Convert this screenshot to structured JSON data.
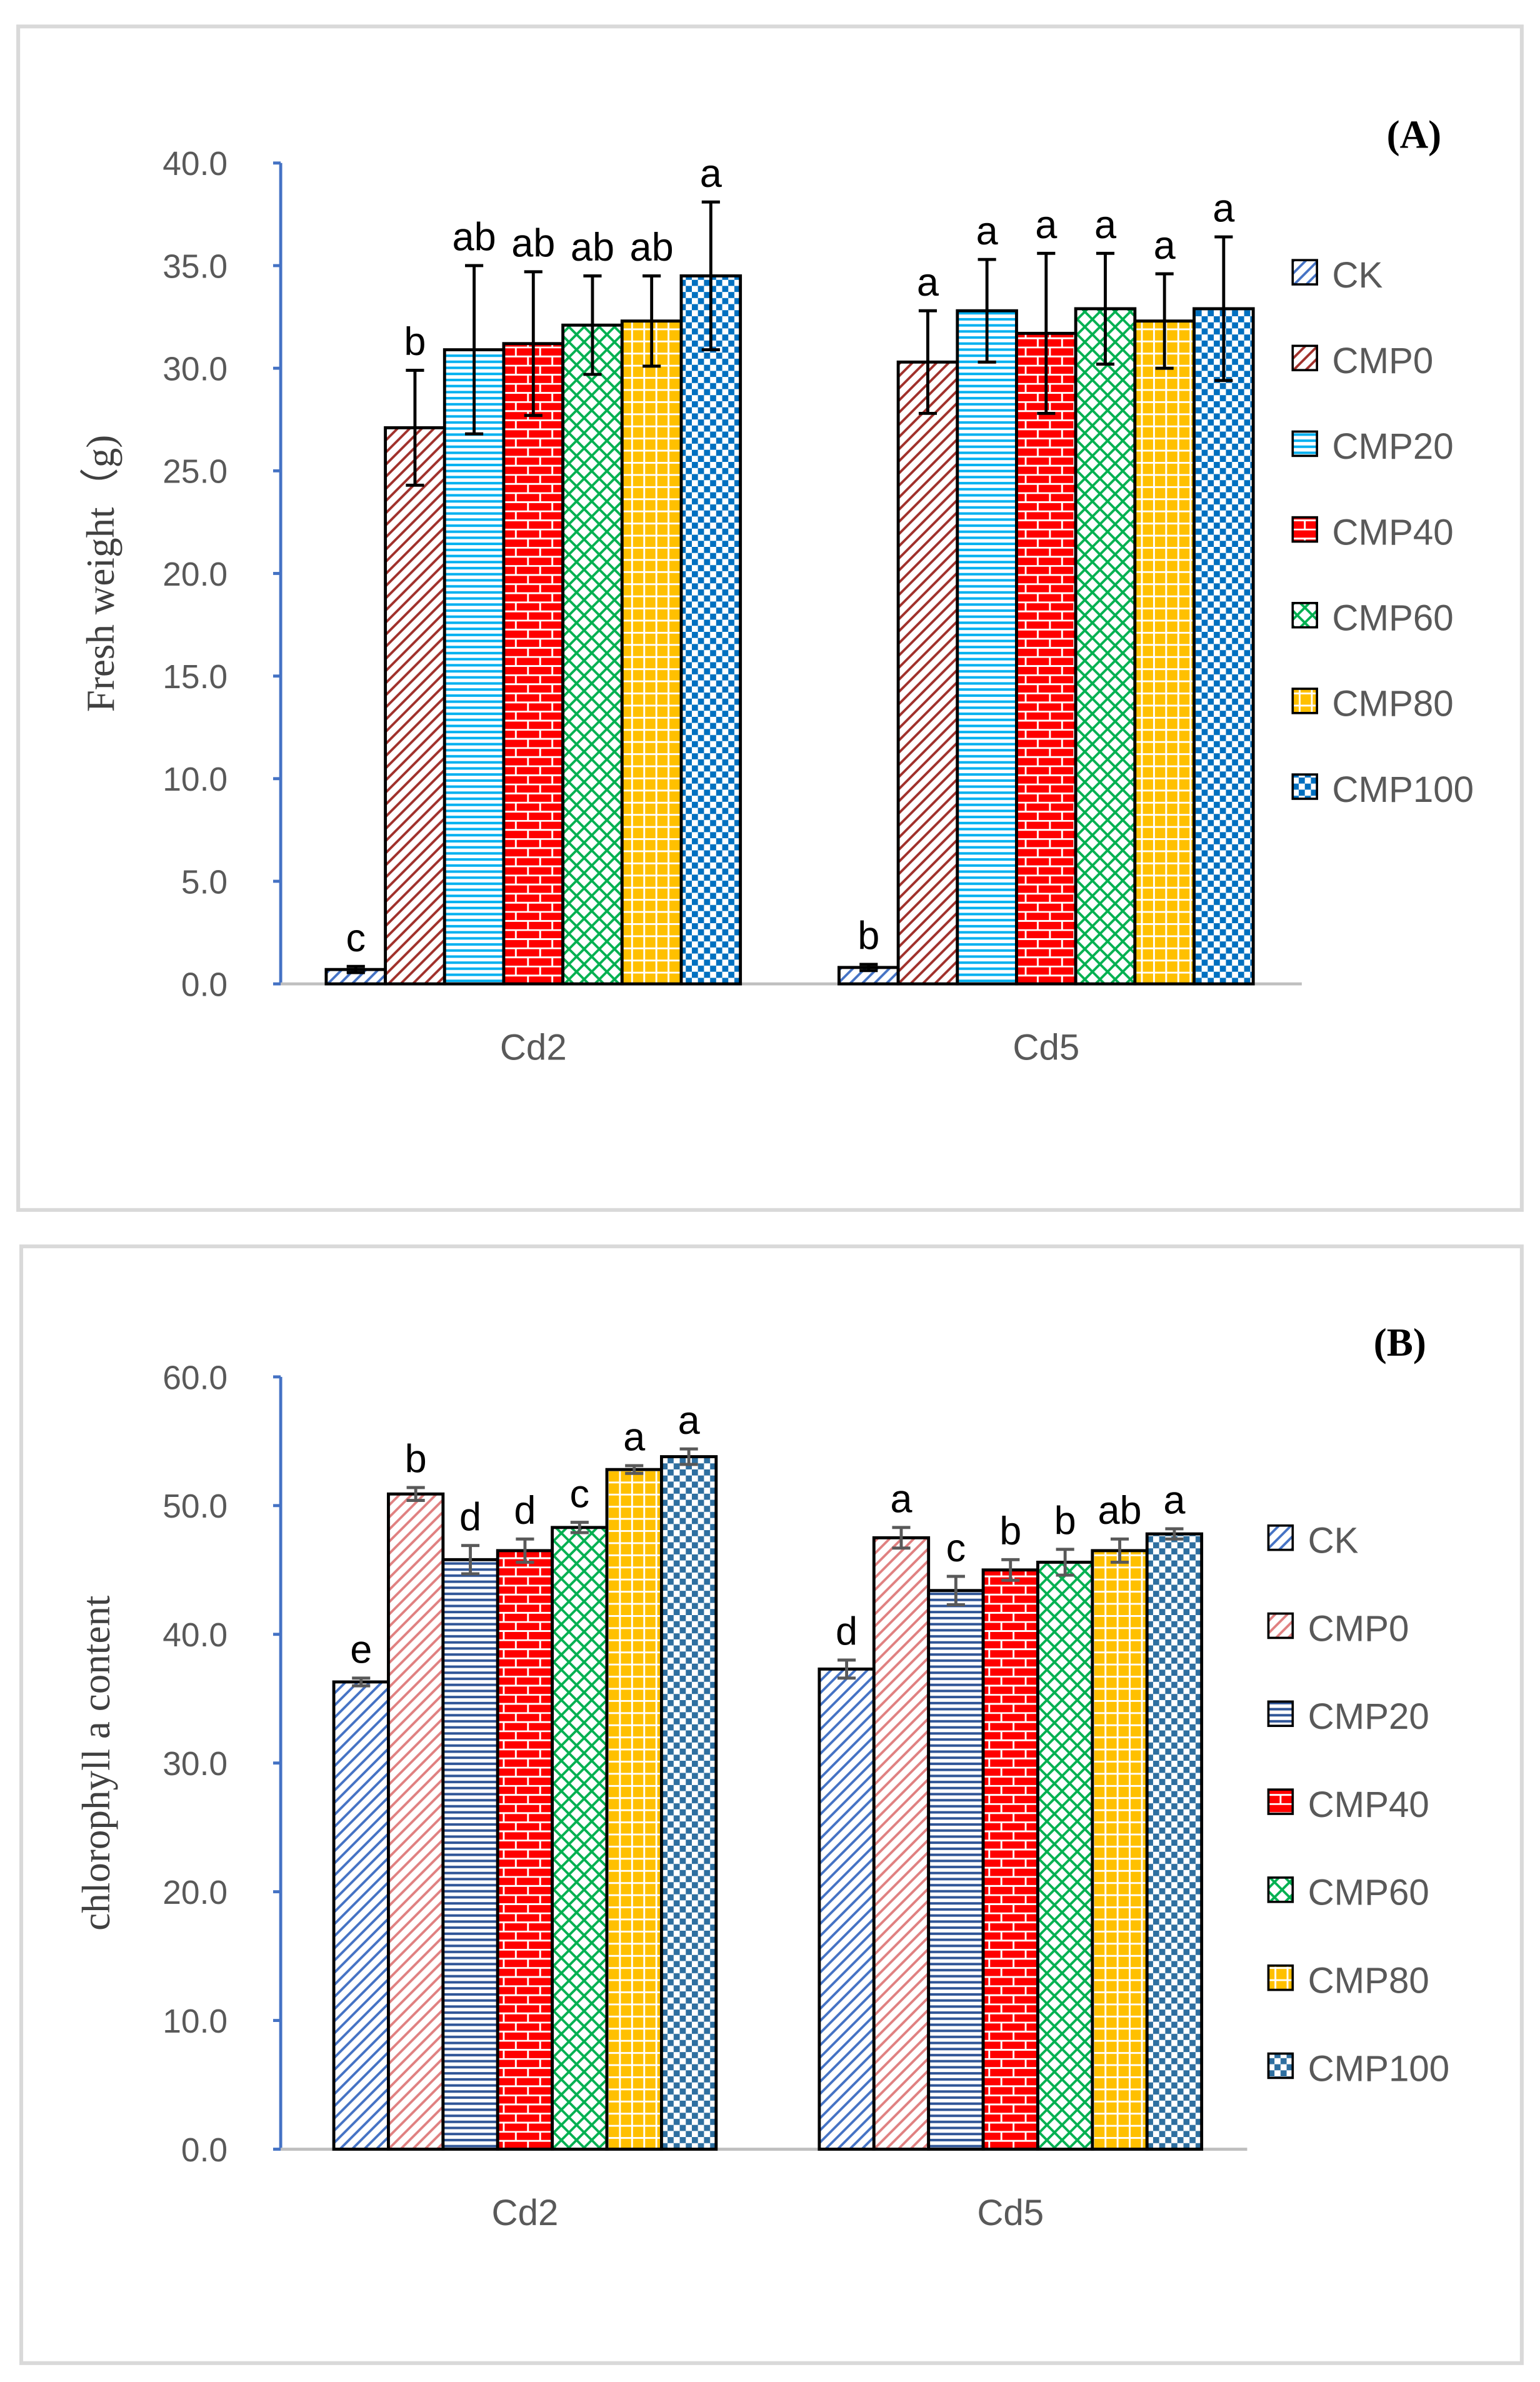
{
  "chart_data": [
    {
      "type": "bar",
      "title": "(A)",
      "xlabel": "",
      "ylabel": "Fresh weight（g)",
      "ylim": [
        0,
        40
      ],
      "yticks": [
        "0.0",
        "5.0",
        "10.0",
        "15.0",
        "20.0",
        "25.0",
        "30.0",
        "35.0",
        "40.0"
      ],
      "categories": [
        "Cd2",
        "Cd5"
      ],
      "legend_position": "right",
      "series": [
        {
          "name": "CK",
          "color": "#4472c4",
          "values": [
            0.7,
            0.8
          ],
          "errors": [
            0.15,
            0.15
          ],
          "letters": [
            "c",
            "b"
          ]
        },
        {
          "name": "CMP0",
          "color": "#a0302a",
          "values": [
            27.1,
            30.3
          ],
          "errors": [
            2.8,
            2.5
          ],
          "letters": [
            "b",
            "a"
          ]
        },
        {
          "name": "CMP20",
          "color": "#00b0f0",
          "values": [
            30.9,
            32.8
          ],
          "errors": [
            4.1,
            2.5
          ],
          "letters": [
            "ab",
            "a"
          ]
        },
        {
          "name": "CMP40",
          "color": "#ff0000",
          "values": [
            31.2,
            31.7
          ],
          "errors": [
            3.5,
            3.9
          ],
          "letters": [
            "ab",
            "a"
          ]
        },
        {
          "name": "CMP60",
          "color": "#00b050",
          "values": [
            32.1,
            32.9
          ],
          "errors": [
            2.4,
            2.7
          ],
          "letters": [
            "ab",
            "a"
          ]
        },
        {
          "name": "CMP80",
          "color": "#ffc000",
          "values": [
            32.3,
            32.3
          ],
          "errors": [
            2.2,
            2.3
          ],
          "letters": [
            "ab",
            "a"
          ]
        },
        {
          "name": "CMP100",
          "color": "#0070c0",
          "values": [
            34.5,
            32.9
          ],
          "errors": [
            3.6,
            3.5
          ],
          "letters": [
            "a",
            "a"
          ]
        }
      ]
    },
    {
      "type": "bar",
      "title": "(B)",
      "xlabel": "",
      "ylabel": "chlorophyll a content",
      "ylim": [
        0,
        60
      ],
      "yticks": [
        "0.0",
        "10.0",
        "20.0",
        "30.0",
        "40.0",
        "50.0",
        "60.0"
      ],
      "categories": [
        "Cd2",
        "Cd5"
      ],
      "legend_position": "right",
      "series": [
        {
          "name": "CK",
          "color": "#4472c4",
          "values": [
            36.3,
            37.3
          ],
          "errors": [
            0.3,
            0.7
          ],
          "letters": [
            "e",
            "d"
          ]
        },
        {
          "name": "CMP0",
          "color": "#e08080",
          "values": [
            50.9,
            47.5
          ],
          "errors": [
            0.5,
            0.8
          ],
          "letters": [
            "b",
            "a"
          ]
        },
        {
          "name": "CMP20",
          "color": "#2f5597",
          "values": [
            45.8,
            43.4
          ],
          "errors": [
            1.1,
            1.1
          ],
          "letters": [
            "d",
            "c"
          ]
        },
        {
          "name": "CMP40",
          "color": "#ff0000",
          "values": [
            46.5,
            45.0
          ],
          "errors": [
            0.9,
            0.8
          ],
          "letters": [
            "d",
            "b"
          ]
        },
        {
          "name": "CMP60",
          "color": "#00b050",
          "values": [
            48.3,
            45.6
          ],
          "errors": [
            0.4,
            1.0
          ],
          "letters": [
            "c",
            "b"
          ]
        },
        {
          "name": "CMP80",
          "color": "#ffc000",
          "values": [
            52.8,
            46.5
          ],
          "errors": [
            0.3,
            0.9
          ],
          "letters": [
            "a",
            "ab"
          ]
        },
        {
          "name": "CMP100",
          "color": "#2e6fa0",
          "values": [
            53.8,
            47.8
          ],
          "errors": [
            0.6,
            0.4
          ],
          "letters": [
            "a",
            "a"
          ]
        }
      ]
    }
  ]
}
